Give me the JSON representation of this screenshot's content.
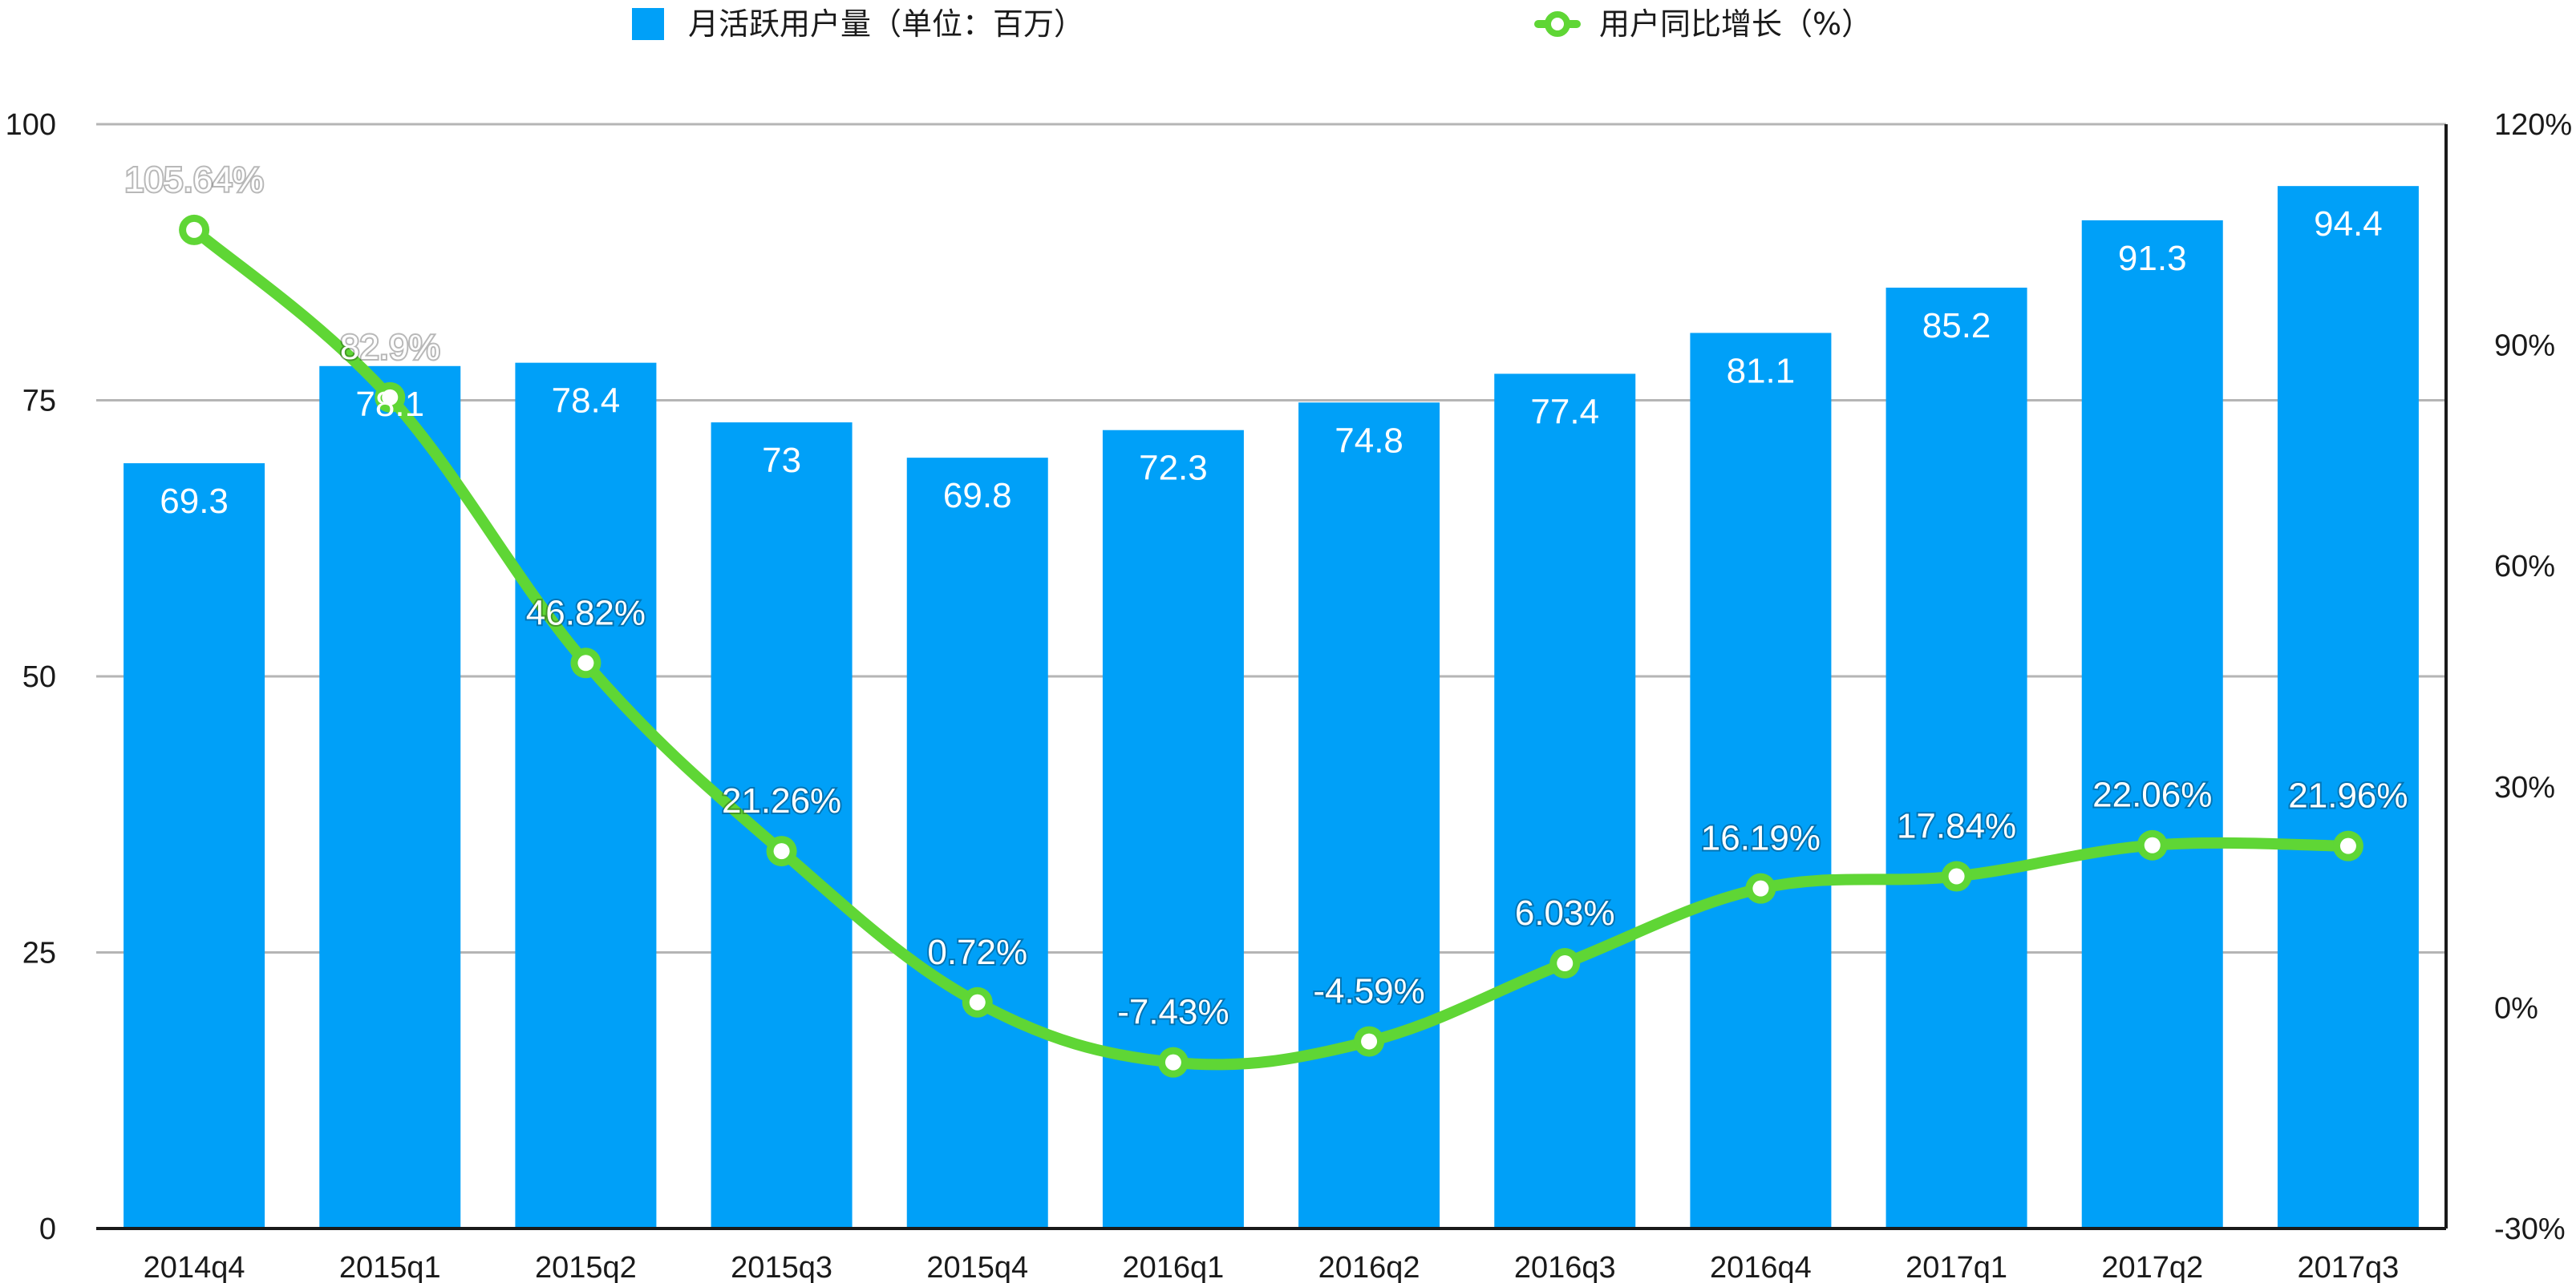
{
  "chart_data": {
    "type": "bar",
    "categories": [
      "2014q4",
      "2015q1",
      "2015q2",
      "2015q3",
      "2015q4",
      "2016q1",
      "2016q2",
      "2016q3",
      "2016q4",
      "2017q1",
      "2017q2",
      "2017q3"
    ],
    "series": [
      {
        "name": "月活跃用户量（单位：百万）",
        "type": "bar",
        "axis": "left",
        "values": [
          69.3,
          78.1,
          78.4,
          73,
          69.8,
          72.3,
          74.8,
          77.4,
          81.1,
          85.2,
          91.3,
          94.4
        ],
        "labels": [
          "69.3",
          "78.1",
          "78.4",
          "73",
          "69.8",
          "72.3",
          "74.8",
          "77.4",
          "81.1",
          "85.2",
          "91.3",
          "94.4"
        ]
      },
      {
        "name": "用户同比增长（%）",
        "type": "line",
        "axis": "right",
        "values": [
          105.64,
          82.9,
          46.82,
          21.26,
          0.72,
          -7.43,
          -4.59,
          6.03,
          16.19,
          17.84,
          22.06,
          21.96
        ],
        "labels": [
          "105.64%",
          "82.9%",
          "46.82%",
          "21.26%",
          "0.72%",
          "-7.43%",
          "-4.59%",
          "6.03%",
          "16.19%",
          "17.84%",
          "22.06%",
          "21.96%"
        ]
      }
    ],
    "ylim": [
      0,
      100
    ],
    "yticks": [
      "0",
      "25",
      "50",
      "75",
      "100"
    ],
    "y2lim": [
      -30,
      120
    ],
    "y2ticks": [
      "-30%",
      "0%",
      "30%",
      "60%",
      "90%",
      "120%"
    ],
    "grid": true,
    "legend_position": "top",
    "colors": {
      "bar": "#00a0f8",
      "line": "#5fd635",
      "marker_fill": "#ffffff",
      "grid": "#b5b5b5",
      "axis": "#1a1a1a"
    }
  }
}
